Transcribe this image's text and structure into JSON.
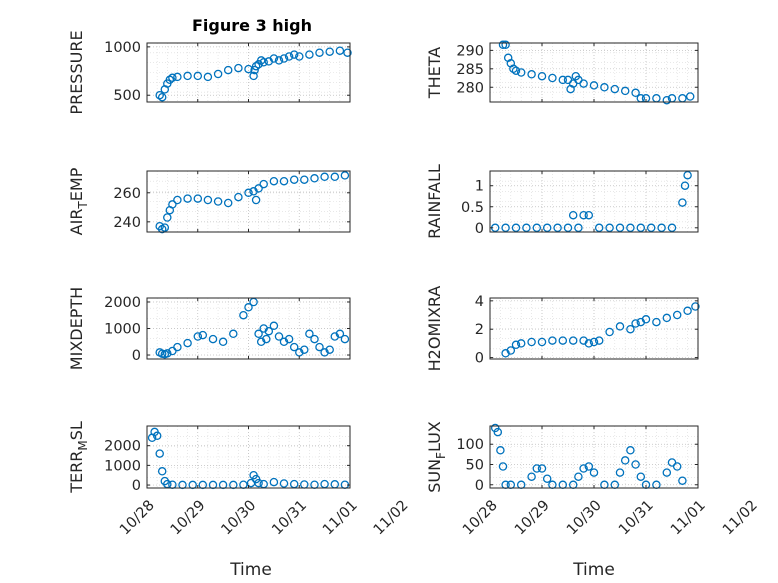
{
  "figure": {
    "title": "Figure 3 high",
    "xlabel": "Time",
    "x_tick_labels": [
      "10/28",
      "10/29",
      "10/30",
      "10/31",
      "11/01",
      "11/02"
    ]
  },
  "style": {
    "marker_color": "#0072BD",
    "grid": true,
    "grid_style": "dotted"
  },
  "chart_data": [
    {
      "type": "scatter",
      "ylabel": "PRESSURE",
      "ylim": [
        430,
        1040
      ],
      "yticks": [
        500,
        1000
      ],
      "xlim": [
        0,
        4
      ],
      "x": [
        0.25,
        0.3,
        0.35,
        0.4,
        0.45,
        0.5,
        0.6,
        0.8,
        1.0,
        1.2,
        1.4,
        1.6,
        1.8,
        2.0,
        2.1,
        2.12,
        2.15,
        2.2,
        2.25,
        2.3,
        2.4,
        2.5,
        2.6,
        2.7,
        2.8,
        2.9,
        3.0,
        3.2,
        3.4,
        3.6,
        3.8,
        3.95
      ],
      "y": [
        500,
        480,
        560,
        620,
        660,
        680,
        690,
        700,
        700,
        690,
        720,
        760,
        780,
        770,
        700,
        760,
        800,
        820,
        860,
        840,
        850,
        880,
        860,
        880,
        900,
        920,
        900,
        920,
        940,
        950,
        960,
        940
      ]
    },
    {
      "type": "scatter",
      "ylabel": "THETA",
      "ylim": [
        276,
        292
      ],
      "yticks": [
        280,
        285,
        290
      ],
      "xlim": [
        0,
        4
      ],
      "x": [
        0.25,
        0.3,
        0.35,
        0.4,
        0.45,
        0.5,
        0.6,
        0.8,
        1.0,
        1.2,
        1.4,
        1.5,
        1.55,
        1.6,
        1.65,
        1.7,
        1.8,
        2.0,
        2.2,
        2.4,
        2.6,
        2.8,
        2.9,
        3.0,
        3.2,
        3.4,
        3.5,
        3.7,
        3.85
      ],
      "y": [
        291.5,
        291.5,
        288,
        286.5,
        285,
        284.5,
        284,
        283.5,
        283,
        282.5,
        282,
        282,
        279.5,
        281,
        283,
        282,
        281,
        280.5,
        280,
        279.5,
        279,
        278.5,
        277,
        277,
        277,
        276.5,
        277,
        277,
        277.5
      ]
    },
    {
      "type": "scatter",
      "ylabel": "AIR_TEMP",
      "ylim": [
        233,
        275
      ],
      "yticks": [
        240,
        260
      ],
      "xlim": [
        0,
        4
      ],
      "x": [
        0.25,
        0.3,
        0.35,
        0.4,
        0.45,
        0.5,
        0.6,
        0.8,
        1.0,
        1.2,
        1.4,
        1.6,
        1.8,
        2.0,
        2.1,
        2.15,
        2.2,
        2.3,
        2.5,
        2.7,
        2.9,
        3.1,
        3.3,
        3.5,
        3.7,
        3.9
      ],
      "y": [
        237,
        235,
        236,
        243,
        248,
        252,
        255,
        256,
        256,
        255,
        254,
        253,
        257,
        260,
        261,
        255,
        263,
        266,
        268,
        268,
        269,
        269,
        270,
        271,
        271,
        272
      ]
    },
    {
      "type": "scatter",
      "ylabel": "RAINFALL",
      "ylim": [
        -0.1,
        1.35
      ],
      "yticks": [
        0,
        0.5,
        1
      ],
      "xlim": [
        0,
        4
      ],
      "x": [
        0.1,
        0.3,
        0.5,
        0.7,
        0.9,
        1.1,
        1.3,
        1.5,
        1.6,
        1.7,
        1.8,
        1.9,
        2.1,
        2.3,
        2.5,
        2.7,
        2.9,
        3.1,
        3.3,
        3.5,
        3.7,
        3.75,
        3.8
      ],
      "y": [
        0,
        0,
        0,
        0,
        0,
        0,
        0,
        0,
        0.3,
        0,
        0.3,
        0.3,
        0,
        0,
        0,
        0,
        0,
        0,
        0,
        0,
        0.6,
        1.0,
        1.25
      ]
    },
    {
      "type": "scatter",
      "ylabel": "MIXDEPTH",
      "ylim": [
        -150,
        2150
      ],
      "yticks": [
        0,
        1000,
        2000
      ],
      "xlim": [
        0,
        4
      ],
      "x": [
        0.25,
        0.3,
        0.35,
        0.4,
        0.5,
        0.6,
        0.8,
        1.0,
        1.1,
        1.3,
        1.5,
        1.7,
        1.9,
        2.0,
        2.1,
        2.2,
        2.25,
        2.3,
        2.35,
        2.4,
        2.5,
        2.6,
        2.7,
        2.8,
        2.9,
        3.0,
        3.1,
        3.2,
        3.3,
        3.4,
        3.5,
        3.6,
        3.7,
        3.8,
        3.9
      ],
      "y": [
        100,
        50,
        30,
        60,
        150,
        300,
        450,
        700,
        750,
        600,
        500,
        800,
        1500,
        1800,
        2000,
        800,
        500,
        1000,
        600,
        900,
        1100,
        700,
        500,
        600,
        300,
        100,
        200,
        800,
        600,
        300,
        100,
        200,
        700,
        800,
        600
      ]
    },
    {
      "type": "scatter",
      "ylabel": "H2OMIXRA",
      "ylim": [
        -0.1,
        4.2
      ],
      "yticks": [
        0,
        2,
        4
      ],
      "xlim": [
        0,
        4
      ],
      "x": [
        0.3,
        0.4,
        0.5,
        0.6,
        0.8,
        1.0,
        1.2,
        1.4,
        1.6,
        1.8,
        1.9,
        2.0,
        2.1,
        2.3,
        2.5,
        2.7,
        2.8,
        2.9,
        3.0,
        3.2,
        3.4,
        3.6,
        3.8,
        3.95
      ],
      "y": [
        0.3,
        0.5,
        0.9,
        1.0,
        1.1,
        1.1,
        1.2,
        1.2,
        1.2,
        1.2,
        1.0,
        1.1,
        1.2,
        1.8,
        2.2,
        2.0,
        2.4,
        2.5,
        2.7,
        2.5,
        2.8,
        3.0,
        3.3,
        3.6
      ]
    },
    {
      "type": "scatter",
      "ylabel": "TERR_MSL",
      "ylim": [
        -150,
        3000
      ],
      "yticks": [
        0,
        1000,
        2000
      ],
      "xlim": [
        0,
        4
      ],
      "x": [
        0.1,
        0.15,
        0.2,
        0.25,
        0.3,
        0.35,
        0.4,
        0.5,
        0.7,
        0.9,
        1.1,
        1.3,
        1.5,
        1.7,
        1.9,
        2.05,
        2.1,
        2.15,
        2.2,
        2.3,
        2.5,
        2.7,
        2.9,
        3.1,
        3.3,
        3.5,
        3.7,
        3.9
      ],
      "y": [
        2400,
        2700,
        2500,
        1600,
        700,
        200,
        50,
        20,
        10,
        10,
        10,
        10,
        10,
        10,
        20,
        100,
        500,
        300,
        100,
        50,
        150,
        80,
        50,
        30,
        20,
        50,
        40,
        20
      ]
    },
    {
      "type": "scatter",
      "ylabel": "SUN_FLUX",
      "ylim": [
        -8,
        145
      ],
      "yticks": [
        0,
        50,
        100
      ],
      "xlim": [
        0,
        4
      ],
      "x": [
        0.1,
        0.15,
        0.2,
        0.25,
        0.3,
        0.4,
        0.6,
        0.8,
        0.9,
        1.0,
        1.1,
        1.2,
        1.4,
        1.6,
        1.7,
        1.8,
        1.9,
        2.0,
        2.2,
        2.4,
        2.5,
        2.6,
        2.7,
        2.8,
        2.9,
        3.0,
        3.2,
        3.4,
        3.5,
        3.6,
        3.7
      ],
      "y": [
        140,
        130,
        85,
        45,
        0,
        0,
        0,
        20,
        40,
        40,
        15,
        0,
        0,
        0,
        20,
        40,
        45,
        30,
        0,
        0,
        30,
        60,
        85,
        50,
        20,
        0,
        0,
        30,
        55,
        45,
        10
      ]
    }
  ]
}
